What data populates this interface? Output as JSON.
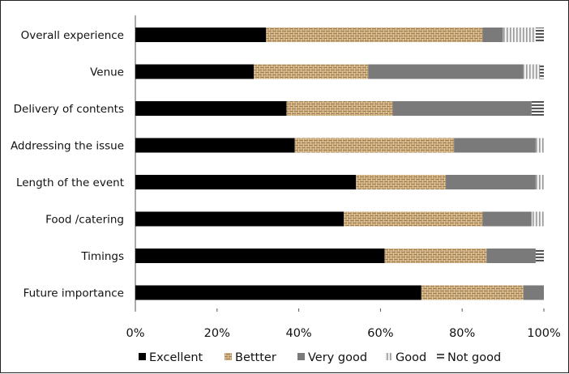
{
  "chart_data": {
    "type": "bar",
    "orientation": "horizontal",
    "stacked": "percent",
    "categories": [
      "Overall experience",
      "Venue",
      "Delivery of contents",
      "Addressing the issue",
      "Length of the event",
      "Food /catering",
      "Timings",
      "Future importance"
    ],
    "series": [
      {
        "name": "Excellent",
        "values": [
          32,
          29,
          37,
          39,
          54,
          51,
          61,
          70
        ]
      },
      {
        "name": "Bettter",
        "values": [
          53,
          28,
          26,
          39,
          22,
          34,
          25,
          25
        ]
      },
      {
        "name": "Very good",
        "values": [
          5,
          38,
          34,
          20,
          22,
          12,
          12,
          5
        ]
      },
      {
        "name": "Good",
        "values": [
          8,
          4,
          0,
          2,
          2,
          3,
          0,
          0
        ]
      },
      {
        "name": "Not good",
        "values": [
          2,
          1,
          3,
          0,
          0,
          0,
          2,
          0
        ]
      }
    ],
    "xlim": [
      0,
      100
    ],
    "xticks": [
      "0%",
      "20%",
      "40%",
      "60%",
      "80%",
      "100%"
    ],
    "legend_position": "bottom",
    "grid": false,
    "colors": {
      "Excellent": "#000000",
      "Bettter": "#c9a877",
      "Very good": "#7a7a7a",
      "Good": "#d8d8d8",
      "Not good": "#555555"
    }
  }
}
